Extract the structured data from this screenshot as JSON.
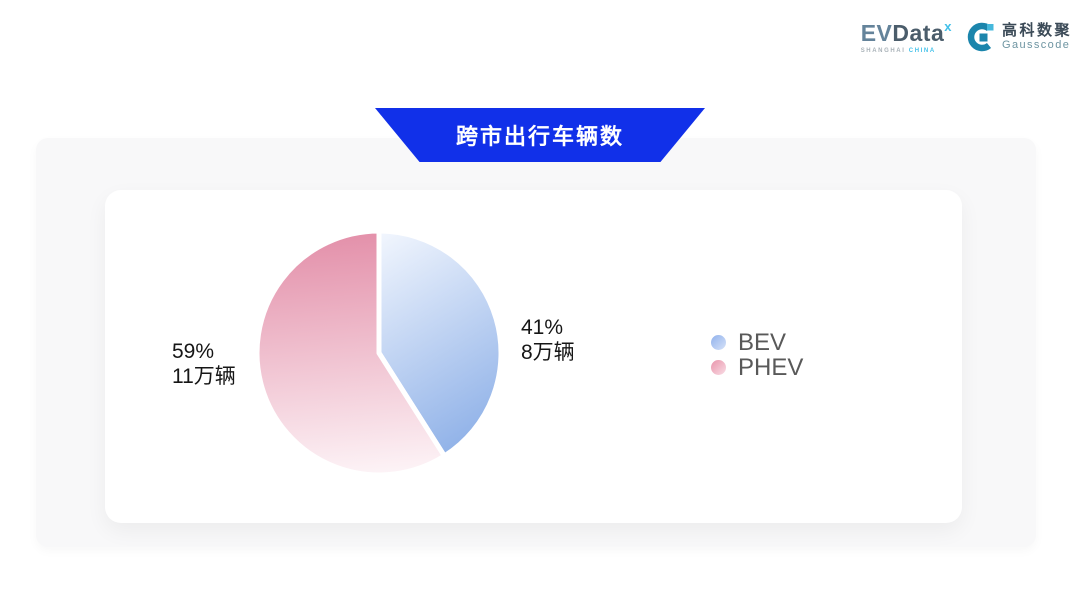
{
  "logo": {
    "evdata": {
      "ev": "EV",
      "data": "Data",
      "mark": "x",
      "tagline_left": "SHANGHAI",
      "tagline_right": "CHINA"
    },
    "gausscode": {
      "cn": "高科数聚",
      "en": "Gausscode"
    }
  },
  "banner": {
    "title": "跨市出行车辆数"
  },
  "chart_data": {
    "type": "pie",
    "title": "跨市出行车辆数",
    "unit": "万辆",
    "start_angle_deg": 0,
    "direction": "clockwise",
    "legend_position": "right",
    "series": [
      {
        "name": "BEV",
        "percent": 41,
        "value": 8,
        "label": "41%",
        "value_label": "8万辆",
        "gradient": [
          "#f3f7fe",
          "#8cafe7"
        ]
      },
      {
        "name": "PHEV",
        "percent": 59,
        "value": 11,
        "label": "59%",
        "value_label": "11万辆",
        "gradient": [
          "#e38fa9",
          "#fdf4f7"
        ]
      }
    ]
  },
  "colors": {
    "banner_blue": "#1130e9",
    "bev_blue": "#8cafe7",
    "phev_pink": "#e38fa9",
    "panel_gray": "#f8f8f9",
    "card_white": "#ffffff",
    "legend_text": "#595959",
    "label_text": "#161616",
    "gausscode_teal": "#1b85ac",
    "gausscode_light_teal": "#45b8dc",
    "evdata_accent": "#41c0e9"
  }
}
